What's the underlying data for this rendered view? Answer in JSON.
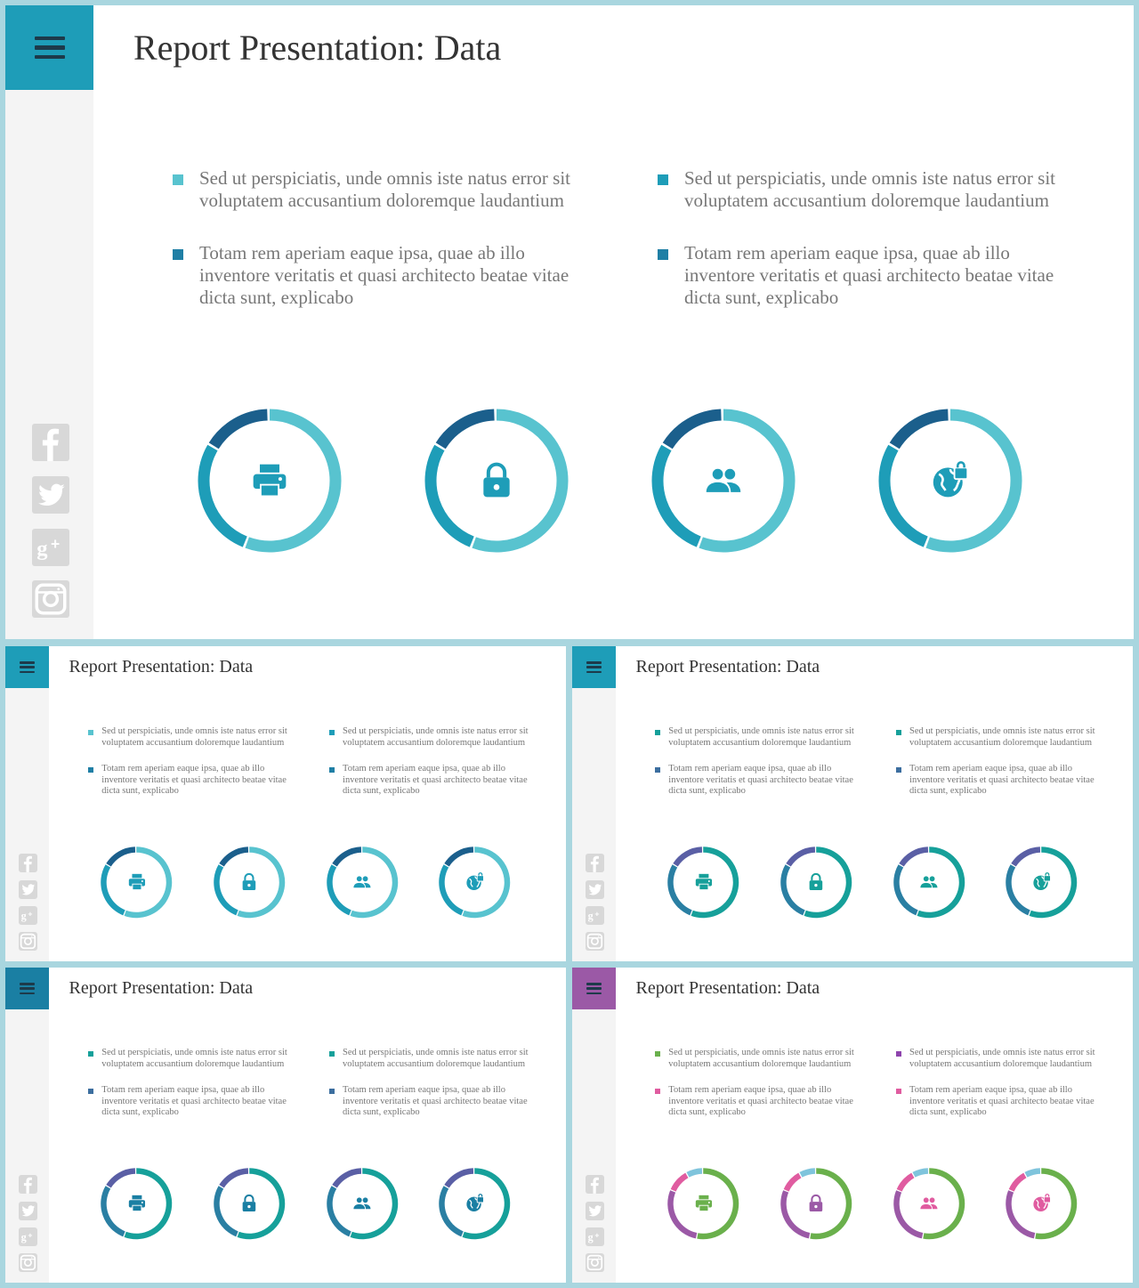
{
  "slides": [
    {
      "title": "Report Presentation: Data",
      "menu_color": "#1e9db8",
      "bullet_colors": [
        "#58c3cf",
        "#1e9db8",
        "#1f7fa5",
        "#1f7fa5"
      ],
      "bullets": [
        "Sed ut perspiciatis, unde omnis iste natus error sit voluptatem accusantium doloremque laudantium",
        "Sed ut perspiciatis, unde omnis iste natus error sit voluptatem accusantium doloremque laudantium",
        "Totam rem aperiam eaque ipsa, quae ab illo inventore veritatis et quasi architecto beatae vitae dicta sunt, explicabo",
        "Totam rem aperiam eaque ipsa, quae ab illo inventore veritatis et quasi architecto beatae vitae dicta sunt, explicabo"
      ],
      "donut_colors": [
        "#58c3cf",
        "#1e9db8",
        "#1b5f8c"
      ],
      "icon_color": "#1e9db8",
      "icons": [
        "printer-icon",
        "lock-icon",
        "group-icon",
        "globe-lock-icon"
      ]
    },
    {
      "title": "Report Presentation: Data",
      "menu_color": "#1e9db8",
      "bullet_colors": [
        "#58c3cf",
        "#1e9db8",
        "#1f7fa5",
        "#1f7fa5"
      ],
      "bullets": [
        "Sed ut perspiciatis, unde omnis iste natus error sit voluptatem accusantium doloremque laudantium",
        "Sed ut perspiciatis, unde omnis iste natus error sit voluptatem accusantium doloremque laudantium",
        "Totam rem aperiam eaque ipsa, quae ab illo inventore veritatis et quasi architecto beatae vitae dicta sunt, explicabo",
        "Totam rem aperiam eaque ipsa, quae ab illo inventore veritatis et quasi architecto beatae vitae dicta sunt, explicabo"
      ],
      "donut_colors": [
        "#58c3cf",
        "#1e9db8",
        "#1b5f8c"
      ],
      "icon_color": "#1e9db8",
      "icons": [
        "printer-icon",
        "lock-icon",
        "group-icon",
        "globe-lock-icon"
      ]
    },
    {
      "title": "Report Presentation: Data",
      "menu_color": "#1e9db8",
      "bullet_colors": [
        "#16a09a",
        "#16a09a",
        "#3c6e9f",
        "#3c6e9f"
      ],
      "bullets": [
        "Sed ut perspiciatis, unde omnis iste natus error sit voluptatem accusantium doloremque laudantium",
        "Sed ut perspiciatis, unde omnis iste natus error sit voluptatem accusantium doloremque laudantium",
        "Totam rem aperiam eaque ipsa, quae ab illo inventore veritatis et quasi architecto beatae vitae dicta sunt, explicabo",
        "Totam rem aperiam eaque ipsa, quae ab illo inventore veritatis et quasi architecto beatae vitae dicta sunt, explicabo"
      ],
      "donut_colors": [
        "#16a09a",
        "#2a7fa3",
        "#5a5fa5"
      ],
      "icon_color": "#16a09a",
      "icons": [
        "printer-icon",
        "lock-icon",
        "group-icon",
        "globe-lock-icon"
      ]
    },
    {
      "title": "Report Presentation: Data",
      "menu_color": "#1a7fa3",
      "bullet_colors": [
        "#16a09a",
        "#16a09a",
        "#3c6e9f",
        "#3c6e9f"
      ],
      "bullets": [
        "Sed ut perspiciatis, unde omnis iste natus error sit voluptatem accusantium doloremque laudantium",
        "Sed ut perspiciatis, unde omnis iste natus error sit voluptatem accusantium doloremque laudantium",
        "Totam rem aperiam eaque ipsa, quae ab illo inventore veritatis et quasi architecto beatae vitae dicta sunt, explicabo",
        "Totam rem aperiam eaque ipsa, quae ab illo inventore veritatis et quasi architecto beatae vitae dicta sunt, explicabo"
      ],
      "donut_colors": [
        "#16a09a",
        "#2a7fa3",
        "#5a5fa5"
      ],
      "icon_color": "#1a7fa3",
      "icons": [
        "printer-icon",
        "lock-icon",
        "group-icon",
        "globe-lock-icon"
      ]
    },
    {
      "title": "Report Presentation: Data",
      "menu_color": "#9b59a6",
      "bullet_colors": [
        "#6ab04c",
        "#8e44ad",
        "#e05ca0",
        "#e05ca0"
      ],
      "bullets": [
        "Sed ut perspiciatis, unde omnis iste natus error sit voluptatem accusantium doloremque laudantium",
        "Sed ut perspiciatis, unde omnis iste natus error sit voluptatem accusantium doloremque laudantium",
        "Totam rem aperiam eaque ipsa, quae ab illo inventore veritatis et quasi architecto beatae vitae dicta sunt, explicabo",
        "Totam rem aperiam eaque ipsa, quae ab illo inventore veritatis et quasi architecto beatae vitae dicta sunt, explicabo"
      ],
      "donut_colors": [
        "#6ab04c",
        "#9b59a6",
        "#e05ca0",
        "#7fc4dc"
      ],
      "icon_colors": [
        "#6ab04c",
        "#9b59a6",
        "#e05ca0",
        "#e05ca0"
      ],
      "icons": [
        "printer-icon",
        "lock-icon",
        "group-icon",
        "globe-lock-icon"
      ]
    }
  ],
  "social_icons": [
    "facebook-icon",
    "twitter-icon",
    "google-plus-icon",
    "instagram-icon"
  ]
}
